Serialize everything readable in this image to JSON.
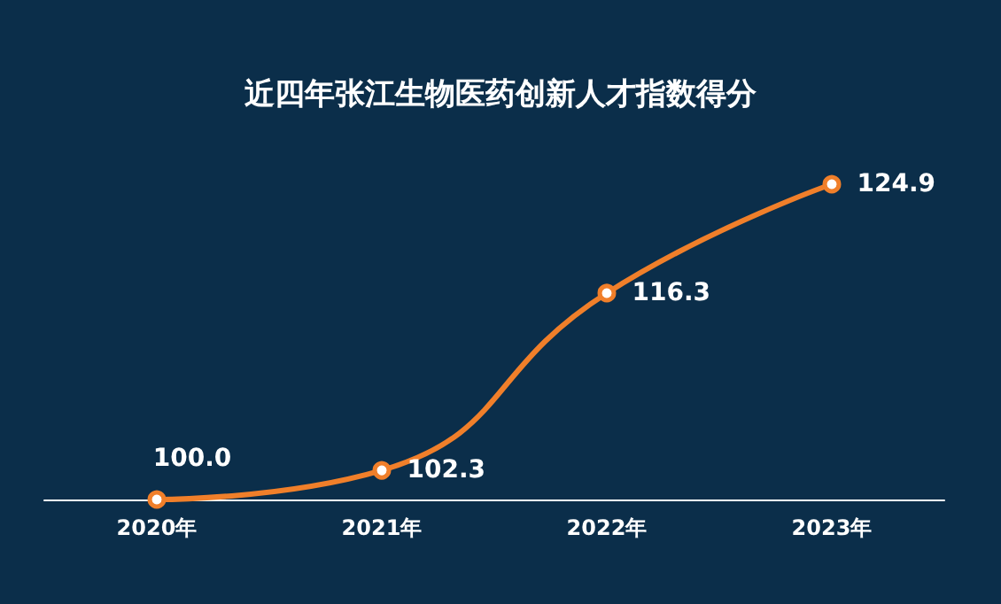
{
  "chart_data": {
    "type": "line",
    "title": "近四年张江生物医药创新人才指数得分",
    "categories": [
      "2020年",
      "2021年",
      "2022年",
      "2023年"
    ],
    "series": [
      {
        "color": "#f07f2a",
        "values": [
          100.0,
          102.3,
          116.3,
          124.9
        ],
        "value_labels": [
          "100.0",
          "102.3",
          "116.3",
          "124.9"
        ]
      }
    ],
    "marker": "circle",
    "line_style": "solid"
  }
}
